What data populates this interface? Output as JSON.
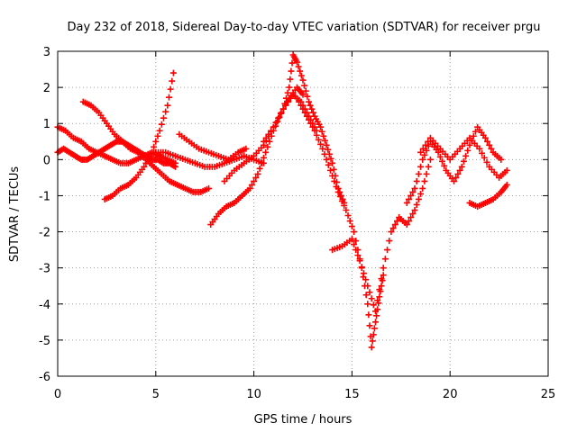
{
  "chart_data": {
    "type": "scatter",
    "title": "Day 232 of 2018, Sidereal Day-to-day VTEC variation (SDTVAR) for receiver prgu",
    "xlabel": "GPS time / hours",
    "ylabel": "SDTVAR / TECUs",
    "xlim": [
      0,
      25
    ],
    "ylim": [
      -6,
      3
    ],
    "x_ticks": [
      "0",
      "5",
      "10",
      "15",
      "20",
      "25"
    ],
    "y_ticks": [
      "-6",
      "-5",
      "-4",
      "-3",
      "-2",
      "-1",
      "0",
      "1",
      "2",
      "3"
    ],
    "grid": true,
    "marker": "plus",
    "color": "#ff0000",
    "series": [
      {
        "name": "arc-1",
        "x": [
          0.0,
          0.3,
          0.6,
          0.9,
          1.2,
          1.5,
          1.8,
          2.1,
          2.4,
          2.7,
          3.0,
          3.3,
          3.6,
          3.9,
          4.2,
          4.5,
          4.8,
          5.1,
          5.4,
          5.7,
          6.0
        ],
        "y": [
          0.2,
          0.3,
          0.2,
          0.1,
          0.0,
          0.0,
          0.1,
          0.2,
          0.3,
          0.4,
          0.5,
          0.5,
          0.4,
          0.3,
          0.2,
          0.1,
          0.0,
          0.0,
          -0.1,
          -0.1,
          -0.2
        ]
      },
      {
        "name": "arc-2",
        "x": [
          0.0,
          0.4,
          0.8,
          1.2,
          1.6,
          2.0,
          2.4,
          2.8,
          3.2,
          3.6,
          4.0,
          4.4,
          4.8,
          5.2,
          5.6,
          6.0
        ],
        "y": [
          0.9,
          0.8,
          0.6,
          0.5,
          0.3,
          0.2,
          0.1,
          0.0,
          -0.1,
          -0.1,
          0.0,
          0.1,
          0.2,
          0.1,
          0.0,
          -0.1
        ]
      },
      {
        "name": "arc-3",
        "x": [
          1.3,
          1.7,
          2.1,
          2.5,
          2.9,
          3.3,
          3.7,
          4.1,
          4.5,
          4.9,
          5.3,
          5.7,
          6.1,
          6.5,
          6.9,
          7.3,
          7.7
        ],
        "y": [
          1.6,
          1.5,
          1.3,
          1.0,
          0.7,
          0.5,
          0.3,
          0.2,
          0.0,
          -0.2,
          -0.4,
          -0.6,
          -0.7,
          -0.8,
          -0.9,
          -0.9,
          -0.8
        ]
      },
      {
        "name": "arc-4",
        "x": [
          2.4,
          2.8,
          3.2,
          3.6,
          4.0,
          4.4,
          4.8,
          5.2,
          5.6,
          5.9
        ],
        "y": [
          -1.1,
          -1.0,
          -0.8,
          -0.7,
          -0.5,
          -0.2,
          0.2,
          0.8,
          1.5,
          2.4
        ]
      },
      {
        "name": "arc-5",
        "x": [
          5.0,
          5.5,
          6.0,
          6.5,
          7.0,
          7.5,
          8.0,
          8.5,
          9.0,
          9.5,
          10.0,
          10.5
        ],
        "y": [
          0.2,
          0.2,
          0.1,
          0.0,
          -0.1,
          -0.2,
          -0.2,
          -0.1,
          0.0,
          0.1,
          0.0,
          -0.1
        ]
      },
      {
        "name": "arc-6",
        "x": [
          6.2,
          6.7,
          7.2,
          7.7,
          8.2,
          8.7,
          9.2,
          9.6
        ],
        "y": [
          0.7,
          0.5,
          0.3,
          0.2,
          0.1,
          0.0,
          0.2,
          0.3
        ]
      },
      {
        "name": "arc-7",
        "x": [
          7.8,
          8.2,
          8.6,
          9.0,
          9.4,
          9.8,
          10.2,
          10.6,
          11.0,
          11.4,
          11.8,
          12.2,
          12.5
        ],
        "y": [
          -1.8,
          -1.5,
          -1.3,
          -1.2,
          -1.0,
          -0.8,
          -0.4,
          0.2,
          0.8,
          1.3,
          1.7,
          2.0,
          1.8
        ]
      },
      {
        "name": "arc-8",
        "x": [
          8.5,
          9.0,
          9.5,
          10.0,
          10.5,
          11.0,
          11.5,
          12.0,
          12.4,
          12.8,
          13.2
        ],
        "y": [
          -0.6,
          -0.3,
          -0.1,
          0.1,
          0.4,
          0.9,
          1.4,
          1.8,
          1.6,
          1.2,
          0.8
        ]
      },
      {
        "name": "arc-9",
        "x": [
          10.5,
          11.0,
          11.5,
          11.8,
          12.0,
          12.2,
          12.5,
          12.8,
          13.1,
          13.4,
          13.7,
          14.0,
          14.3,
          14.6
        ],
        "y": [
          0.5,
          0.9,
          1.4,
          2.0,
          2.9,
          2.7,
          2.2,
          1.6,
          1.2,
          0.9,
          0.4,
          -0.1,
          -0.8,
          -1.2
        ]
      },
      {
        "name": "arc-10",
        "x": [
          12.3,
          12.7,
          13.1,
          13.5,
          13.9,
          14.3,
          14.7,
          15.1,
          15.5,
          15.8,
          16.0,
          16.2,
          16.4,
          16.6
        ],
        "y": [
          1.6,
          1.2,
          0.8,
          0.3,
          -0.3,
          -0.9,
          -1.4,
          -2.0,
          -3.0,
          -4.0,
          -5.2,
          -4.5,
          -3.8,
          -3.2
        ]
      },
      {
        "name": "arc-11",
        "x": [
          14.0,
          14.5,
          15.0,
          15.4,
          15.8,
          16.2,
          16.6,
          17.0,
          17.4,
          17.8,
          18.2,
          18.6,
          19.0
        ],
        "y": [
          -2.5,
          -2.4,
          -2.2,
          -2.8,
          -3.5,
          -4.2,
          -3.0,
          -2.0,
          -1.6,
          -1.8,
          -1.4,
          -0.8,
          0.0
        ]
      },
      {
        "name": "arc-12",
        "x": [
          17.8,
          18.2,
          18.6,
          19.0,
          19.4,
          19.8,
          20.2,
          20.6,
          21.0,
          21.4,
          21.8,
          22.2,
          22.6
        ],
        "y": [
          -1.2,
          -0.8,
          0.0,
          0.5,
          0.2,
          -0.3,
          -0.6,
          -0.2,
          0.4,
          0.9,
          0.6,
          0.2,
          0.0
        ]
      },
      {
        "name": "arc-13",
        "x": [
          18.5,
          19.0,
          19.5,
          20.0,
          20.5,
          21.0,
          21.5,
          22.0,
          22.5,
          22.9
        ],
        "y": [
          0.2,
          0.6,
          0.3,
          0.0,
          0.3,
          0.6,
          0.3,
          -0.2,
          -0.5,
          -0.3
        ]
      },
      {
        "name": "arc-14",
        "x": [
          21.0,
          21.4,
          21.8,
          22.2,
          22.6,
          22.9
        ],
        "y": [
          -1.2,
          -1.3,
          -1.2,
          -1.1,
          -0.9,
          -0.7
        ]
      }
    ]
  }
}
